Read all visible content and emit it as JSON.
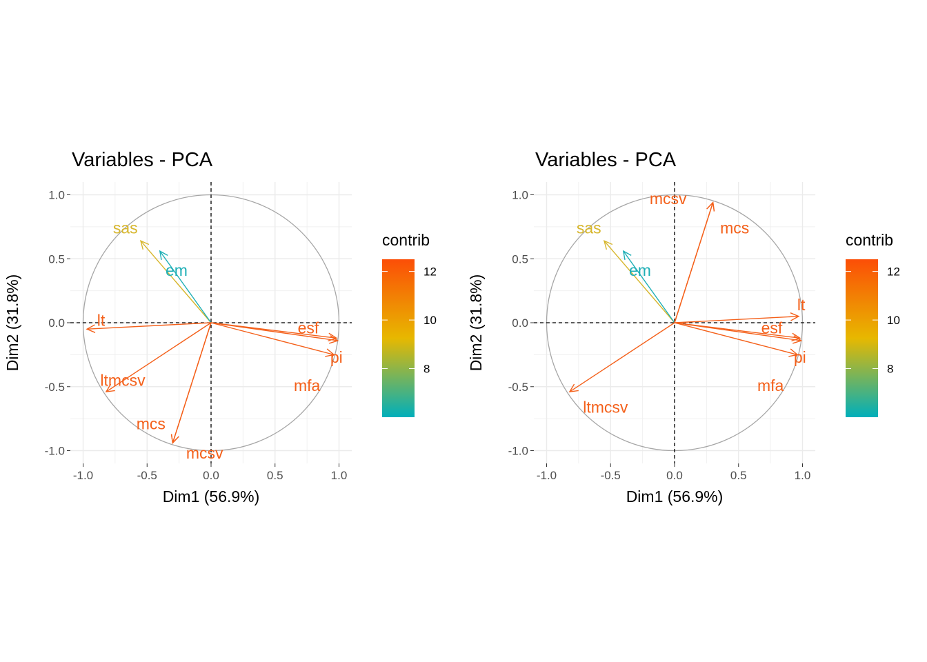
{
  "chart_data": [
    {
      "type": "scatter",
      "subtype": "pca-variable-correlation-circle",
      "title": "Variables - PCA",
      "xlabel": "Dim1 (56.9%)",
      "ylabel": "Dim2 (31.8%)",
      "xlim": [
        -1.1,
        1.1
      ],
      "ylim": [
        -1.1,
        1.1
      ],
      "xticks": [
        -1.0,
        -0.5,
        0.0,
        0.5,
        1.0
      ],
      "xtick_labels": [
        "-1.0",
        "-0.5",
        "0.0",
        "0.5",
        "1.0"
      ],
      "yticks": [
        -1.0,
        -0.5,
        0.0,
        0.5,
        1.0
      ],
      "ytick_labels": [
        "-1.0",
        "-0.5",
        "0.0",
        "0.5",
        "1.0"
      ],
      "grid": true,
      "legend": {
        "title": "contrib",
        "placement": "right",
        "ticks": [
          8,
          10,
          12
        ],
        "range": [
          6,
          12.5
        ],
        "gradient": [
          "#00AFBB",
          "#E7B800",
          "#FC4E07"
        ]
      },
      "variables": [
        {
          "name": "sas",
          "x": -0.55,
          "y": 0.64,
          "contrib": 8.9,
          "color": "#D7B62C"
        },
        {
          "name": "em",
          "x": -0.4,
          "y": 0.56,
          "contrib": 6.3,
          "color": "#1FAFB6"
        },
        {
          "name": "lt",
          "x": -0.97,
          "y": -0.05,
          "contrib": 12.3,
          "color": "#F4601A"
        },
        {
          "name": "ltmcsv",
          "x": -0.82,
          "y": -0.54,
          "contrib": 12.3,
          "color": "#F4601A"
        },
        {
          "name": "mcs",
          "x": -0.3,
          "y": -0.94,
          "contrib": 12.3,
          "color": "#F4601A"
        },
        {
          "name": "mcsv",
          "x": -0.3,
          "y": -0.94,
          "contrib": 12.3,
          "color": "#F4601A"
        },
        {
          "name": "esf",
          "x": 0.98,
          "y": -0.12,
          "contrib": 12.3,
          "color": "#F4601A"
        },
        {
          "name": "pi",
          "x": 0.99,
          "y": -0.14,
          "contrib": 12.3,
          "color": "#F4601A"
        },
        {
          "name": "mfa",
          "x": 0.96,
          "y": -0.25,
          "contrib": 12.3,
          "color": "#F4601A"
        }
      ]
    },
    {
      "type": "scatter",
      "subtype": "pca-variable-correlation-circle",
      "title": "Variables - PCA",
      "xlabel": "Dim1 (56.9%)",
      "ylabel": "Dim2 (31.8%)",
      "xlim": [
        -1.1,
        1.1
      ],
      "ylim": [
        -1.1,
        1.1
      ],
      "xticks": [
        -1.0,
        -0.5,
        0.0,
        0.5,
        1.0
      ],
      "xtick_labels": [
        "-1.0",
        "-0.5",
        "0.0",
        "0.5",
        "1.0"
      ],
      "yticks": [
        -1.0,
        -0.5,
        0.0,
        0.5,
        1.0
      ],
      "ytick_labels": [
        "-1.0",
        "-0.5",
        "0.0",
        "0.5",
        "1.0"
      ],
      "grid": true,
      "legend": {
        "title": "contrib",
        "placement": "right",
        "ticks": [
          8,
          10,
          12
        ],
        "range": [
          6,
          12.5
        ],
        "gradient": [
          "#00AFBB",
          "#E7B800",
          "#FC4E07"
        ]
      },
      "variables": [
        {
          "name": "sas",
          "x": -0.55,
          "y": 0.64,
          "contrib": 8.9,
          "color": "#D7B62C"
        },
        {
          "name": "em",
          "x": -0.4,
          "y": 0.56,
          "contrib": 6.3,
          "color": "#1FAFB6"
        },
        {
          "name": "mcsv",
          "x": 0.3,
          "y": 0.94,
          "contrib": 12.3,
          "color": "#F4601A"
        },
        {
          "name": "mcs",
          "x": 0.3,
          "y": 0.94,
          "contrib": 12.3,
          "color": "#F4601A"
        },
        {
          "name": "lt",
          "x": 0.97,
          "y": 0.05,
          "contrib": 12.3,
          "color": "#F4601A"
        },
        {
          "name": "esf",
          "x": 0.98,
          "y": -0.12,
          "contrib": 12.3,
          "color": "#F4601A"
        },
        {
          "name": "pi",
          "x": 0.99,
          "y": -0.14,
          "contrib": 12.3,
          "color": "#F4601A"
        },
        {
          "name": "mfa",
          "x": 0.96,
          "y": -0.25,
          "contrib": 12.3,
          "color": "#F4601A"
        },
        {
          "name": "ltmcsv",
          "x": -0.82,
          "y": -0.54,
          "contrib": 12.3,
          "color": "#F4601A"
        }
      ]
    }
  ]
}
